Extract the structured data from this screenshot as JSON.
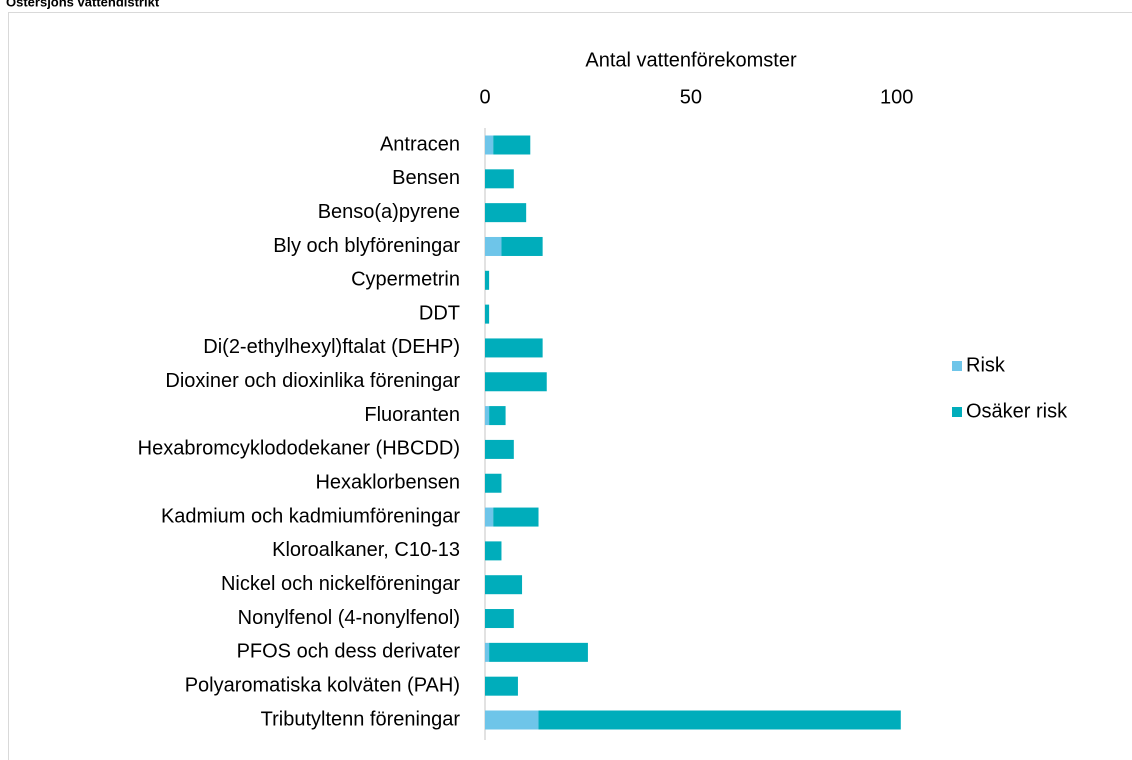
{
  "chart_data": {
    "type": "stacked_barh",
    "title": "Östersjöns vattendistrikt",
    "x_label": "Antal vattenförekomster",
    "categories": [
      "Antracen",
      "Bensen",
      "Benso(a)pyrene",
      "Bly och blyföreningar",
      "Cypermetrin",
      "DDT",
      "Di(2-ethylhexyl)ftalat (DEHP)",
      "Dioxiner och dioxinlika föreningar",
      "Fluoranten",
      "Hexabromcyklododekaner (HBCDD)",
      "Hexaklorbensen",
      "Kadmium och kadmiumföreningar",
      "Kloroalkaner, C10-13",
      "Nickel och nickelföreningar",
      "Nonylfenol (4-nonylfenol)",
      "PFOS och dess derivater",
      "Polyaromatiska kolväten (PAH)",
      "Tributyltenn föreningar"
    ],
    "series": [
      {
        "name": "Risk",
        "color": "#6ec5e9",
        "values": [
          2,
          0,
          0,
          4,
          0,
          0,
          0,
          0,
          1,
          0,
          0,
          2,
          0,
          0,
          0,
          1,
          0,
          13
        ]
      },
      {
        "name": "Osäker risk",
        "color": "#00adbb",
        "values": [
          9,
          7,
          10,
          10,
          1,
          1,
          14,
          15,
          4,
          7,
          4,
          11,
          4,
          9,
          7,
          24,
          8,
          88
        ]
      }
    ],
    "xlim": [
      0,
      120
    ],
    "xticks": [
      0,
      50,
      100
    ],
    "grid": false,
    "legend": "right"
  }
}
